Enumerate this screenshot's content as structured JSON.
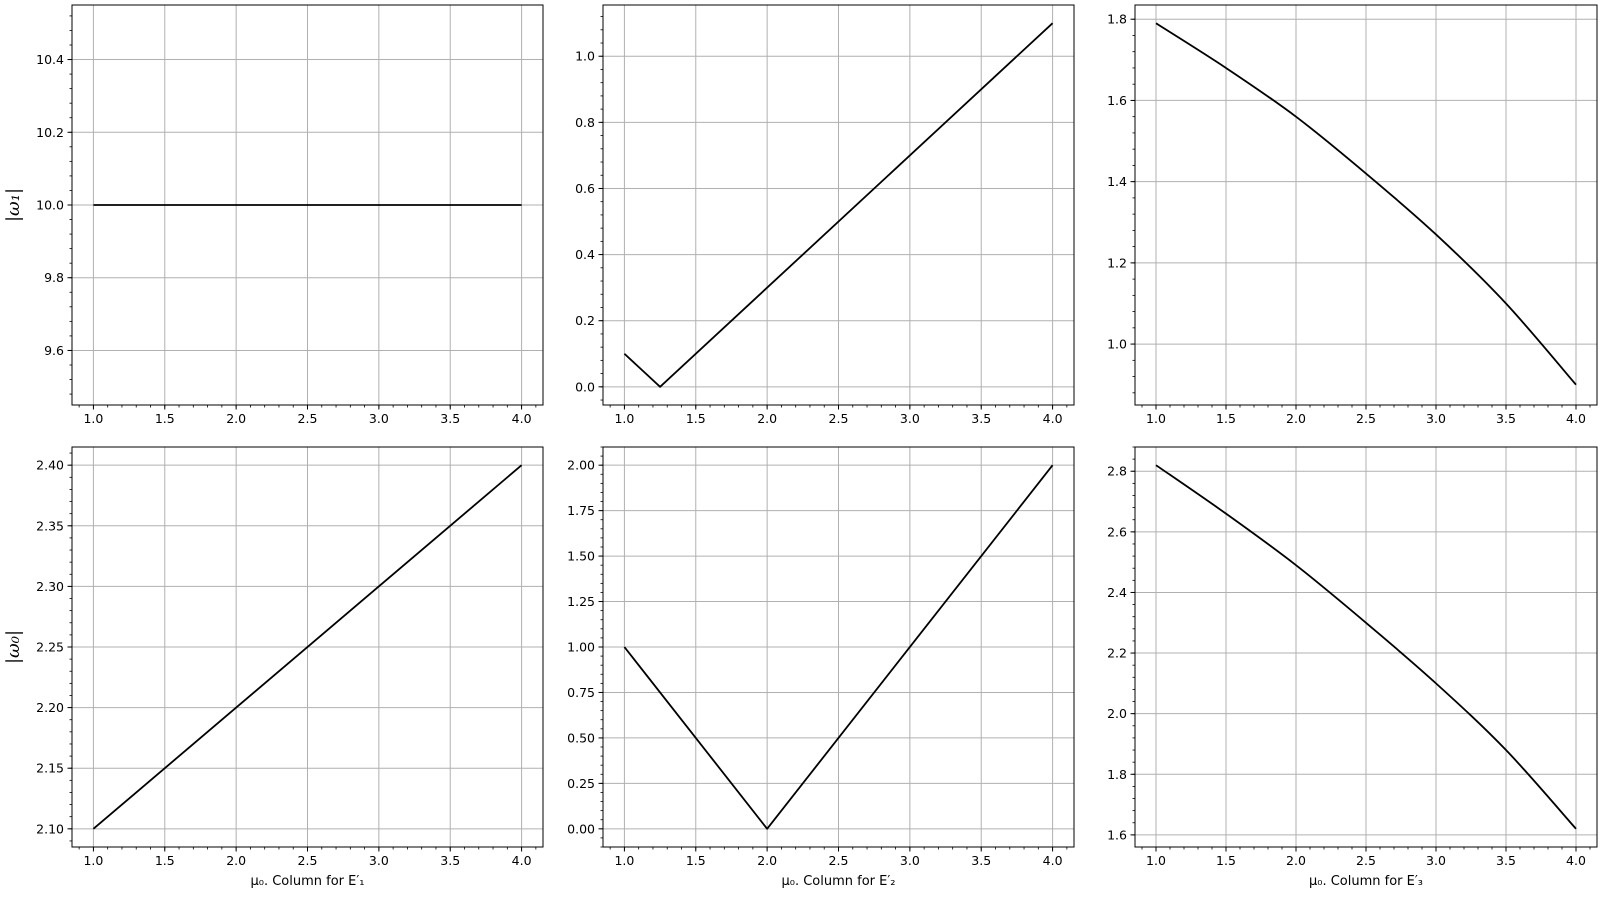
{
  "figure": {
    "ylabels": [
      "|ω₁|",
      "|ω₀|"
    ],
    "xlabels": [
      "μ₀.  Column for E′₁",
      "μ₀.  Column for E′₂",
      "μ₀.  Column for E′₃"
    ]
  },
  "chart_data": [
    {
      "type": "line",
      "row": 0,
      "col": 0,
      "xlabel": "",
      "ylabel": "|ω₁|",
      "xlim": [
        0.85,
        4.15
      ],
      "ylim": [
        9.45,
        10.55
      ],
      "xticks": [
        1.0,
        1.5,
        2.0,
        2.5,
        3.0,
        3.5,
        4.0
      ],
      "yticks": [
        9.6,
        9.8,
        10.0,
        10.2,
        10.4
      ],
      "x": [
        1.0,
        4.0
      ],
      "y": [
        10.0,
        10.0
      ],
      "grid": true
    },
    {
      "type": "line",
      "row": 0,
      "col": 1,
      "xlabel": "",
      "ylabel": "",
      "xlim": [
        0.85,
        4.15
      ],
      "ylim": [
        -0.055,
        1.155
      ],
      "xticks": [
        1.0,
        1.5,
        2.0,
        2.5,
        3.0,
        3.5,
        4.0
      ],
      "yticks": [
        0.0,
        0.2,
        0.4,
        0.6,
        0.8,
        1.0
      ],
      "x": [
        1.0,
        1.25,
        4.0
      ],
      "y": [
        0.1,
        0.0,
        1.1
      ],
      "grid": true
    },
    {
      "type": "line",
      "row": 0,
      "col": 2,
      "xlabel": "",
      "ylabel": "",
      "xlim": [
        0.85,
        4.15
      ],
      "ylim": [
        0.85,
        1.835
      ],
      "xticks": [
        1.0,
        1.5,
        2.0,
        2.5,
        3.0,
        3.5,
        4.0
      ],
      "yticks": [
        1.0,
        1.2,
        1.4,
        1.6,
        1.8
      ],
      "x": [
        1.0,
        1.5,
        2.0,
        2.5,
        3.0,
        3.5,
        4.0
      ],
      "y": [
        1.79,
        1.68,
        1.56,
        1.42,
        1.27,
        1.1,
        0.9
      ],
      "grid": true
    },
    {
      "type": "line",
      "row": 1,
      "col": 0,
      "xlabel": "μ₀.  Column for E′₁",
      "ylabel": "|ω₀|",
      "xlim": [
        0.85,
        4.15
      ],
      "ylim": [
        2.085,
        2.415
      ],
      "xticks": [
        1.0,
        1.5,
        2.0,
        2.5,
        3.0,
        3.5,
        4.0
      ],
      "yticks": [
        2.1,
        2.15,
        2.2,
        2.25,
        2.3,
        2.35,
        2.4
      ],
      "x": [
        1.0,
        4.0
      ],
      "y": [
        2.1,
        2.4
      ],
      "grid": true
    },
    {
      "type": "line",
      "row": 1,
      "col": 1,
      "xlabel": "μ₀.  Column for E′₂",
      "ylabel": "",
      "xlim": [
        0.85,
        4.15
      ],
      "ylim": [
        -0.1,
        2.1
      ],
      "xticks": [
        1.0,
        1.5,
        2.0,
        2.5,
        3.0,
        3.5,
        4.0
      ],
      "yticks": [
        0.0,
        0.25,
        0.5,
        0.75,
        1.0,
        1.25,
        1.5,
        1.75,
        2.0
      ],
      "x": [
        1.0,
        2.0,
        4.0
      ],
      "y": [
        1.0,
        0.0,
        2.0
      ],
      "grid": true
    },
    {
      "type": "line",
      "row": 1,
      "col": 2,
      "xlabel": "μ₀.  Column for E′₃",
      "ylabel": "",
      "xlim": [
        0.85,
        4.15
      ],
      "ylim": [
        1.56,
        2.88
      ],
      "xticks": [
        1.0,
        1.5,
        2.0,
        2.5,
        3.0,
        3.5,
        4.0
      ],
      "yticks": [
        1.6,
        1.8,
        2.0,
        2.2,
        2.4,
        2.6,
        2.8
      ],
      "x": [
        1.0,
        1.5,
        2.0,
        2.5,
        3.0,
        3.5,
        4.0
      ],
      "y": [
        2.82,
        2.66,
        2.49,
        2.3,
        2.1,
        1.88,
        1.62
      ],
      "grid": true
    }
  ]
}
